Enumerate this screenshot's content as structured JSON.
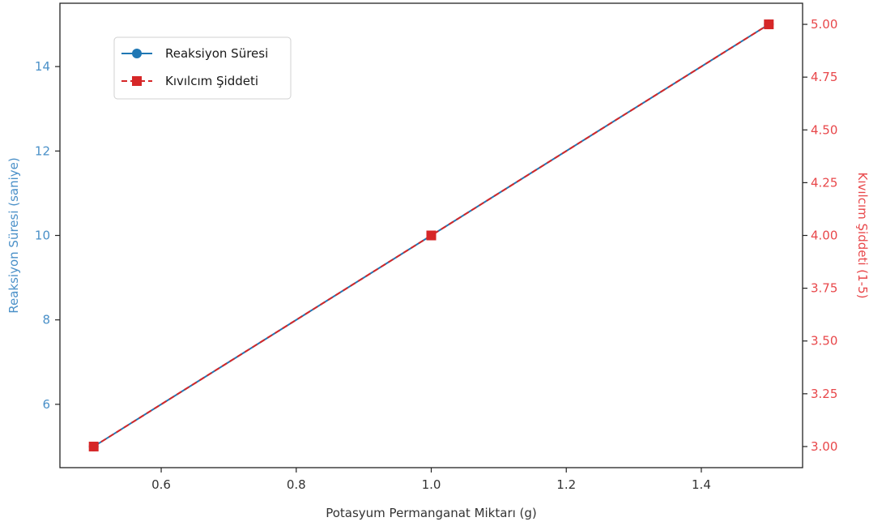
{
  "chart_data": {
    "type": "line",
    "x": [
      0.5,
      1.0,
      1.5
    ],
    "xlabel": "Potasyum Permanganat Miktarı (g)",
    "xlim": [
      0.45,
      1.55
    ],
    "xticks": [
      "0.6",
      "0.8",
      "1.0",
      "1.2",
      "1.4"
    ],
    "grid": false,
    "legend_position": "upper-left",
    "series": [
      {
        "name": "Reaksiyon Süresi",
        "axis": "left",
        "values": [
          5,
          10,
          15
        ],
        "color": "#1f77b4",
        "marker": "circle",
        "line_style": "solid"
      },
      {
        "name": "Kıvılcım Şiddeti",
        "axis": "right",
        "values": [
          3.0,
          4.0,
          5.0
        ],
        "color": "#d62728",
        "marker": "square",
        "line_style": "dashed"
      }
    ],
    "y_left": {
      "label": "Reaksiyon Süresi (saniye)",
      "ylim": [
        4.5,
        15.5
      ],
      "ticks": [
        "6",
        "8",
        "10",
        "12",
        "14"
      ],
      "color": "#4a90c8"
    },
    "y_right": {
      "label": "Kıvılcım Şiddeti (1-5)",
      "ylim": [
        2.9,
        5.1
      ],
      "ticks": [
        "3.00",
        "3.25",
        "3.50",
        "3.75",
        "4.00",
        "4.25",
        "4.50",
        "4.75",
        "5.00"
      ],
      "color": "#e8474a"
    }
  }
}
